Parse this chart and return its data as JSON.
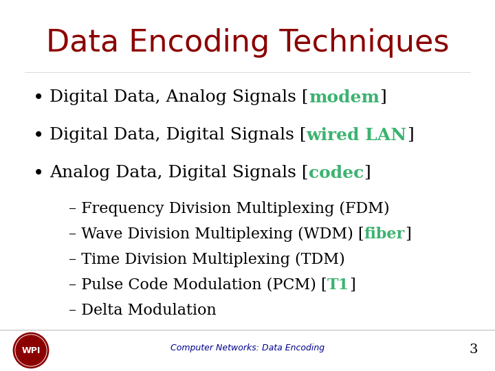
{
  "title": "Data Encoding Techniques",
  "title_color": "#8B0000",
  "title_fontsize": 32,
  "background_color": "#FFFFFF",
  "bullet_color": "#000000",
  "bullet_fontsize": 18,
  "sub_fontsize": 16,
  "teal_color": "#3CB371",
  "footer_text": "Computer Networks: Data Encoding",
  "footer_color": "#00008B",
  "page_number": "3",
  "bullets": [
    {
      "parts": [
        {
          "text": "Digital Data, Analog Signals [",
          "color": "#000000",
          "bold": false
        },
        {
          "text": "modem",
          "color": "#3CB371",
          "bold": true
        },
        {
          "text": "]",
          "color": "#000000",
          "bold": false
        }
      ]
    },
    {
      "parts": [
        {
          "text": "Digital Data, Digital Signals [",
          "color": "#000000",
          "bold": false
        },
        {
          "text": "wired LAN",
          "color": "#3CB371",
          "bold": true
        },
        {
          "text": "]",
          "color": "#000000",
          "bold": false
        }
      ]
    },
    {
      "parts": [
        {
          "text": "Analog Data, Digital Signals [",
          "color": "#000000",
          "bold": false
        },
        {
          "text": "codec",
          "color": "#3CB371",
          "bold": true
        },
        {
          "text": "]",
          "color": "#000000",
          "bold": false
        }
      ]
    }
  ],
  "subitems": [
    {
      "parts": [
        {
          "text": "– Frequency Division Multiplexing (FDM)",
          "color": "#000000",
          "bold": false
        }
      ]
    },
    {
      "parts": [
        {
          "text": "– Wave Division Multiplexing (WDM) [",
          "color": "#000000",
          "bold": false
        },
        {
          "text": "fiber",
          "color": "#3CB371",
          "bold": true
        },
        {
          "text": "]",
          "color": "#000000",
          "bold": false
        }
      ]
    },
    {
      "parts": [
        {
          "text": "– Time Division Multiplexing (TDM)",
          "color": "#000000",
          "bold": false
        }
      ]
    },
    {
      "parts": [
        {
          "text": "– Pulse Code Modulation (PCM) [",
          "color": "#000000",
          "bold": false
        },
        {
          "text": "T1",
          "color": "#3CB371",
          "bold": true
        },
        {
          "text": "]",
          "color": "#000000",
          "bold": false
        }
      ]
    },
    {
      "parts": [
        {
          "text": "– Delta Modulation",
          "color": "#000000",
          "bold": false
        }
      ]
    }
  ]
}
